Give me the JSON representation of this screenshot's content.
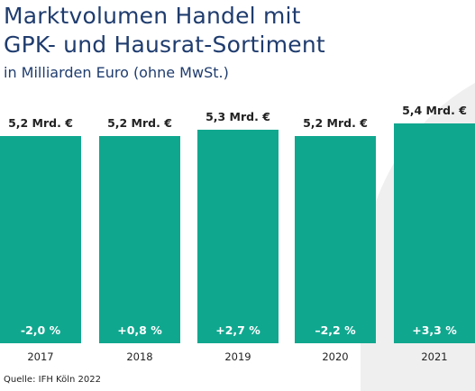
{
  "title_lines": [
    "Marktvolumen Handel mit",
    "GPK- und Hausrat-Sortiment"
  ],
  "subtitle": "in Milliarden Euro (ohne MwSt.)",
  "source": "Quelle: IFH Köln 2022",
  "colors": {
    "bar": "#10a78f",
    "title": "#1f3c6e",
    "text": "#222222",
    "swoosh": "#eeeeee"
  },
  "chart_data": {
    "type": "bar",
    "categories": [
      "2017",
      "2018",
      "2019",
      "2020",
      "2021"
    ],
    "values": [
      5.2,
      5.2,
      5.3,
      5.2,
      5.4
    ],
    "value_labels": [
      "5,2 Mrd. €",
      "5,2 Mrd. €",
      "5,3 Mrd. €",
      "5,2 Mrd. €",
      "5,4 Mrd. €"
    ],
    "change_labels": [
      "-2,0 %",
      "+0,8 %",
      "+2,7 %",
      "–2,2 %",
      "+3,3 %"
    ],
    "title": "Marktvolumen Handel mit GPK- und Hausrat-Sortiment",
    "subtitle": "in Milliarden Euro (ohne MwSt.)",
    "ylabel": "",
    "xlabel": "",
    "unit": "Mrd. €",
    "grid": false
  }
}
